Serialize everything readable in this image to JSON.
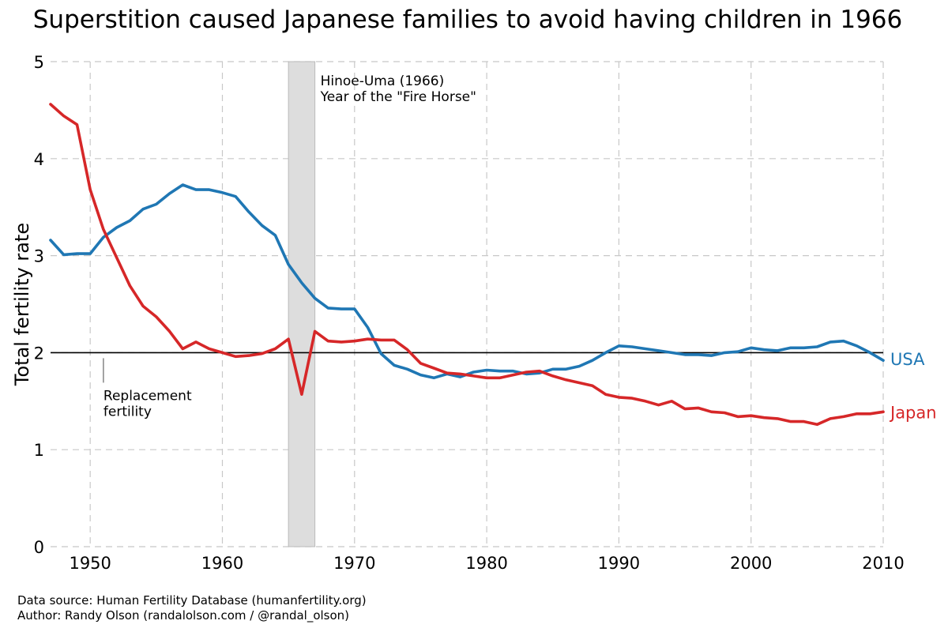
{
  "chart_data": {
    "type": "line",
    "title": "Superstition caused Japanese families to avoid having children in 1966",
    "xlabel": "",
    "ylabel": "Total fertility rate",
    "xlim": [
      1947,
      2010
    ],
    "ylim": [
      0,
      5
    ],
    "xticks": [
      1950,
      1960,
      1970,
      1980,
      1990,
      2000,
      2010
    ],
    "yticks": [
      0,
      1,
      2,
      3,
      4,
      5
    ],
    "grid": true,
    "x": [
      1947,
      1948,
      1949,
      1950,
      1951,
      1952,
      1953,
      1954,
      1955,
      1956,
      1957,
      1958,
      1959,
      1960,
      1961,
      1962,
      1963,
      1964,
      1965,
      1966,
      1967,
      1968,
      1969,
      1970,
      1971,
      1972,
      1973,
      1974,
      1975,
      1976,
      1977,
      1978,
      1979,
      1980,
      1981,
      1982,
      1983,
      1984,
      1985,
      1986,
      1987,
      1988,
      1989,
      1990,
      1991,
      1992,
      1993,
      1994,
      1995,
      1996,
      1997,
      1998,
      1999,
      2000,
      2001,
      2002,
      2003,
      2004,
      2005,
      2006,
      2007,
      2008,
      2009,
      2010
    ],
    "series": [
      {
        "name": "USA",
        "color": "#1f77b4",
        "values": [
          3.16,
          3.01,
          3.02,
          3.02,
          3.19,
          3.29,
          3.36,
          3.48,
          3.53,
          3.64,
          3.73,
          3.68,
          3.68,
          3.65,
          3.61,
          3.45,
          3.31,
          3.21,
          2.91,
          2.72,
          2.56,
          2.46,
          2.45,
          2.45,
          2.26,
          1.99,
          1.87,
          1.83,
          1.77,
          1.74,
          1.78,
          1.75,
          1.8,
          1.82,
          1.81,
          1.81,
          1.78,
          1.79,
          1.83,
          1.83,
          1.86,
          1.92,
          2.0,
          2.07,
          2.06,
          2.04,
          2.02,
          2.0,
          1.98,
          1.98,
          1.97,
          2.0,
          2.01,
          2.05,
          2.03,
          2.02,
          2.05,
          2.05,
          2.06,
          2.11,
          2.12,
          2.07,
          2.0,
          1.92
        ]
      },
      {
        "name": "Japan",
        "color": "#d62728",
        "values": [
          4.56,
          4.44,
          4.35,
          3.68,
          3.27,
          2.98,
          2.69,
          2.48,
          2.37,
          2.22,
          2.04,
          2.11,
          2.04,
          2.0,
          1.96,
          1.97,
          1.99,
          2.04,
          2.14,
          1.57,
          2.22,
          2.12,
          2.11,
          2.12,
          2.14,
          2.13,
          2.13,
          2.03,
          1.89,
          1.84,
          1.79,
          1.78,
          1.76,
          1.74,
          1.74,
          1.77,
          1.8,
          1.81,
          1.76,
          1.72,
          1.69,
          1.66,
          1.57,
          1.54,
          1.53,
          1.5,
          1.46,
          1.5,
          1.42,
          1.43,
          1.39,
          1.38,
          1.34,
          1.35,
          1.33,
          1.32,
          1.29,
          1.29,
          1.26,
          1.32,
          1.34,
          1.37,
          1.37,
          1.39
        ]
      }
    ],
    "reference_line": {
      "y": 2,
      "label_line1": "Replacement",
      "label_line2": "fertility"
    },
    "highlight_band": {
      "x_start": 1965,
      "x_end": 1967,
      "label_line1": "Hinoe-Uma (1966)",
      "label_line2": "Year of the \"Fire Horse\""
    }
  },
  "footer": {
    "source": "Data source: Human Fertility Database (humanfertility.org)",
    "author": "Author: Randy Olson (randalolson.com / @randal_olson)"
  },
  "colors": {
    "usa": "#1f77b4",
    "japan": "#d62728",
    "band_fill": "#dddddd",
    "band_stroke": "#bbbbbb",
    "grid": "#c8c8c8"
  }
}
